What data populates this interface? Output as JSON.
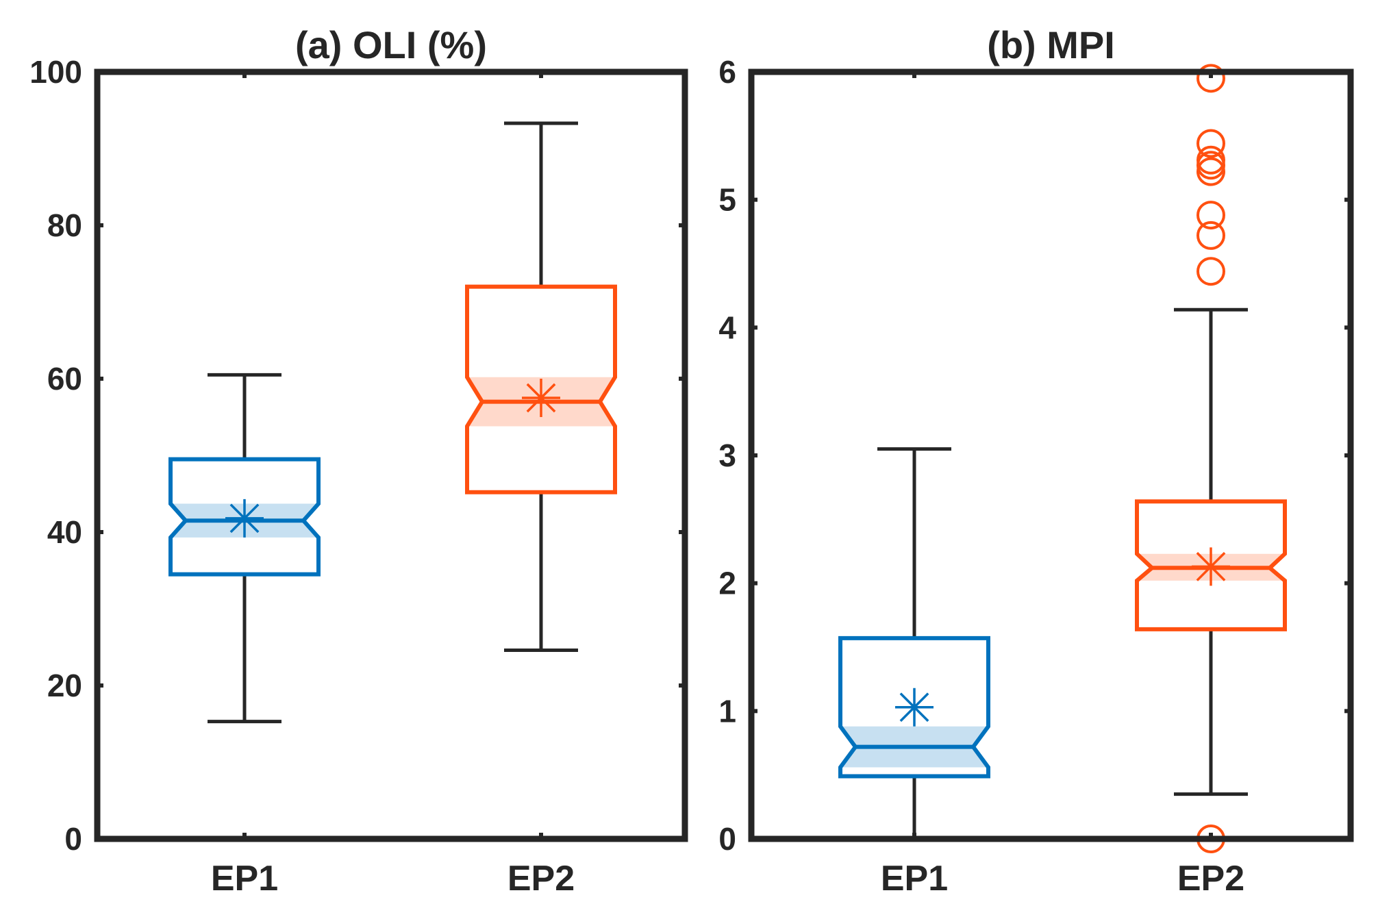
{
  "chart_data": [
    {
      "type": "boxplot",
      "title": "(a) OLI (%)",
      "xlabel": "",
      "ylabel": "",
      "ylim": [
        0,
        100
      ],
      "yticks": [
        0,
        20,
        40,
        60,
        80,
        100
      ],
      "categories": [
        "EP1",
        "EP2"
      ],
      "boxes": [
        {
          "name": "EP1",
          "color": "#0072BD",
          "min": 15.3,
          "q1": 34.5,
          "median": 41.5,
          "q3": 49.5,
          "max": 60.5,
          "notch_low": 39.3,
          "notch_high": 43.7,
          "mean": 41.8,
          "outliers": []
        },
        {
          "name": "EP2",
          "color": "#FF5010",
          "min": 24.6,
          "q1": 45.2,
          "median": 57.0,
          "q3": 72.0,
          "max": 93.3,
          "notch_low": 53.8,
          "notch_high": 60.2,
          "mean": 57.5,
          "outliers": []
        }
      ]
    },
    {
      "type": "boxplot",
      "title": "(b) MPI",
      "xlabel": "",
      "ylabel": "",
      "ylim": [
        0,
        6
      ],
      "yticks": [
        0,
        1,
        2,
        3,
        4,
        5,
        6
      ],
      "categories": [
        "EP1",
        "EP2"
      ],
      "boxes": [
        {
          "name": "EP1",
          "color": "#0072BD",
          "min": 0.0,
          "q1": 0.49,
          "median": 0.72,
          "q3": 1.57,
          "max": 3.05,
          "notch_low": 0.56,
          "notch_high": 0.88,
          "mean": 1.03,
          "outliers": []
        },
        {
          "name": "EP2",
          "color": "#FF5010",
          "min": 0.35,
          "q1": 1.64,
          "median": 2.12,
          "q3": 2.64,
          "max": 4.14,
          "notch_low": 2.02,
          "notch_high": 2.23,
          "mean": 2.13,
          "outliers": [
            0.0,
            4.44,
            4.72,
            4.88,
            5.22,
            5.27,
            5.31,
            5.44,
            5.95
          ]
        }
      ]
    }
  ]
}
